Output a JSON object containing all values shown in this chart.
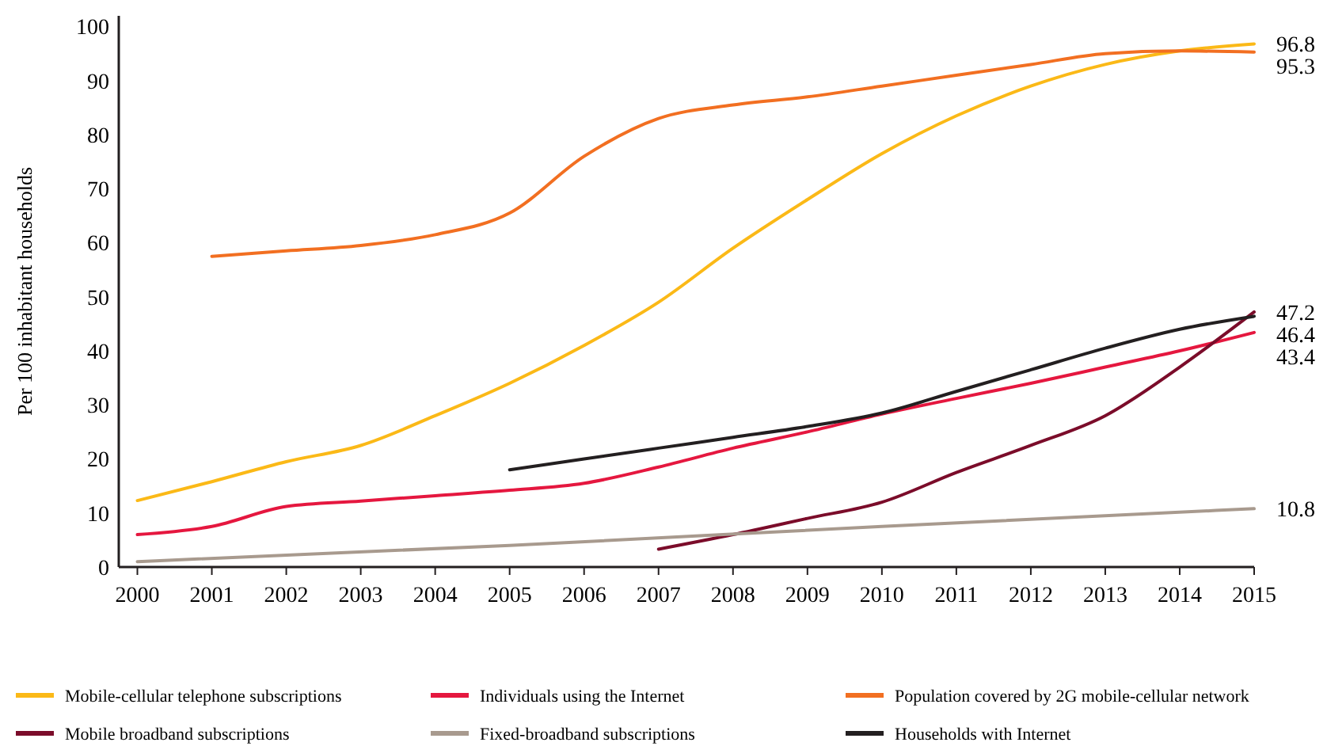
{
  "chart_data": {
    "type": "line",
    "ylabel": "Per 100 inhabitant households",
    "xlim": [
      1999.75,
      2015
    ],
    "xticks": [
      2000,
      2001,
      2002,
      2003,
      2004,
      2005,
      2006,
      2007,
      2008,
      2009,
      2010,
      2011,
      2012,
      2013,
      2014,
      2015
    ],
    "ylim": [
      0,
      102
    ],
    "yticks": [
      0,
      10,
      20,
      30,
      40,
      50,
      60,
      70,
      80,
      90,
      100
    ],
    "grid": false,
    "legend": "bottom",
    "marker": "none",
    "line_style": "solid",
    "series": [
      {
        "name": "Mobile-cellular telephone subscriptions",
        "color": "#fbb917",
        "x": [
          2000,
          2001,
          2002,
          2003,
          2004,
          2005,
          2006,
          2007,
          2008,
          2009,
          2010,
          2011,
          2012,
          2013,
          2014,
          2015
        ],
        "values": [
          12.3,
          15.8,
          19.5,
          22.5,
          28,
          34,
          41,
          49,
          59,
          68,
          76.5,
          83.5,
          89,
          93,
          95.5,
          96.8
        ],
        "value_labels": [
          null,
          null,
          null,
          null,
          null,
          null,
          null,
          null,
          null,
          null,
          null,
          null,
          null,
          null,
          null,
          "96.8"
        ]
      },
      {
        "name": "Individuals using the Internet",
        "color": "#e5173f",
        "x": [
          2000,
          2001,
          2002,
          2003,
          2004,
          2005,
          2006,
          2007,
          2008,
          2009,
          2010,
          2011,
          2012,
          2013,
          2014,
          2015
        ],
        "values": [
          6,
          7.5,
          11.2,
          12.2,
          13.2,
          14.2,
          15.5,
          18.5,
          22,
          25,
          28.3,
          31.2,
          34,
          37,
          40,
          43.4
        ],
        "value_labels": [
          null,
          null,
          null,
          null,
          null,
          null,
          null,
          null,
          null,
          null,
          null,
          null,
          null,
          null,
          null,
          "43.4"
        ]
      },
      {
        "name": "Population covered by 2G mobile-cellular network",
        "color": "#f26f21",
        "x": [
          2001,
          2002,
          2003,
          2004,
          2005,
          2006,
          2007,
          2008,
          2009,
          2010,
          2011,
          2012,
          2013,
          2014,
          2015
        ],
        "values": [
          57.5,
          58.5,
          59.5,
          61.5,
          65.5,
          76,
          83,
          85.5,
          87,
          89,
          91,
          93,
          95,
          95.5,
          95.3
        ],
        "value_labels": [
          null,
          null,
          null,
          null,
          null,
          null,
          null,
          null,
          null,
          null,
          null,
          null,
          null,
          null,
          "95.3"
        ]
      },
      {
        "name": "Mobile broadband subscriptions",
        "color": "#7b0c2a",
        "x": [
          2007,
          2008,
          2009,
          2010,
          2011,
          2012,
          2013,
          2014,
          2015
        ],
        "values": [
          3.3,
          6,
          9,
          12,
          17.5,
          22.5,
          28,
          37,
          47.2
        ],
        "value_labels": [
          null,
          null,
          null,
          null,
          null,
          null,
          null,
          null,
          "47.2"
        ]
      },
      {
        "name": "Fixed-broadband subscriptions",
        "color": "#a89a8e",
        "x": [
          2000,
          2005,
          2010,
          2015
        ],
        "values": [
          1,
          4,
          7.5,
          10.8
        ],
        "value_labels": [
          null,
          null,
          null,
          "10.8"
        ]
      },
      {
        "name": "Households with Internet",
        "color": "#231f20",
        "x": [
          2005,
          2006,
          2007,
          2008,
          2009,
          2010,
          2011,
          2012,
          2013,
          2014,
          2015
        ],
        "values": [
          18,
          20,
          22,
          24,
          26,
          28.5,
          32.5,
          36.5,
          40.5,
          44,
          46.4
        ],
        "value_labels": [
          null,
          null,
          null,
          null,
          null,
          null,
          null,
          null,
          null,
          null,
          "46.4"
        ]
      }
    ]
  }
}
